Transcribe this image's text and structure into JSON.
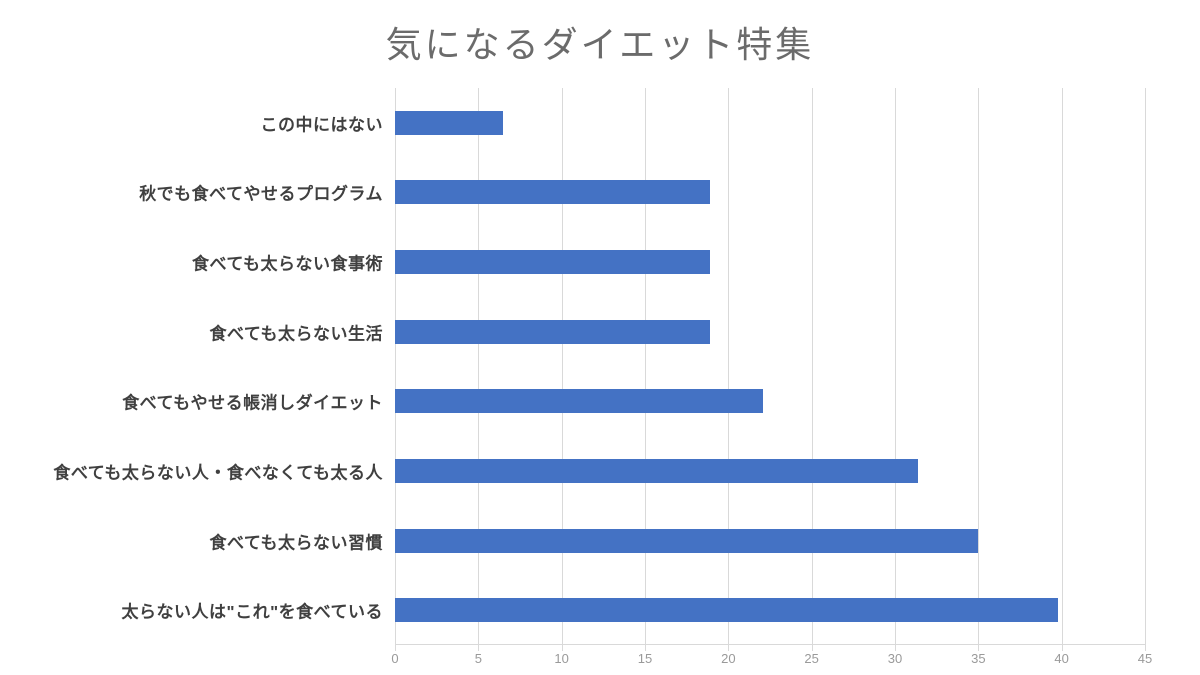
{
  "page": {
    "background": "#ffffff"
  },
  "chart_data": {
    "type": "bar",
    "orientation": "horizontal",
    "title": "気になるダイエット特集",
    "categories": [
      "この中にはない",
      "秋でも食べてやせるプログラム",
      "食べても太らない食事術",
      "食べても太らない生活",
      "食べてもやせる帳消しダイエット",
      "食べても太らない人・食べなくても太る人",
      "食べても太らない習慣",
      "太らない人は\"これ\"を食べている"
    ],
    "values": [
      6.5,
      18.9,
      18.9,
      18.9,
      22.1,
      31.4,
      35,
      39.8
    ],
    "category_order": "top-to-bottom",
    "xlabel": "",
    "ylabel": "",
    "xlim": [
      0,
      45
    ],
    "x_ticks": [
      0,
      5,
      10,
      15,
      20,
      25,
      30,
      35,
      40,
      45
    ],
    "grid": "vertical gridlines on",
    "legend": "none",
    "colors": {
      "bar": "#4472C4",
      "gridline": "#d9d9d9",
      "axis_line": "#d9d9d9",
      "tick_label": "#9a9a9a",
      "category_label": "#404040",
      "title": "#6b6b6b"
    }
  }
}
